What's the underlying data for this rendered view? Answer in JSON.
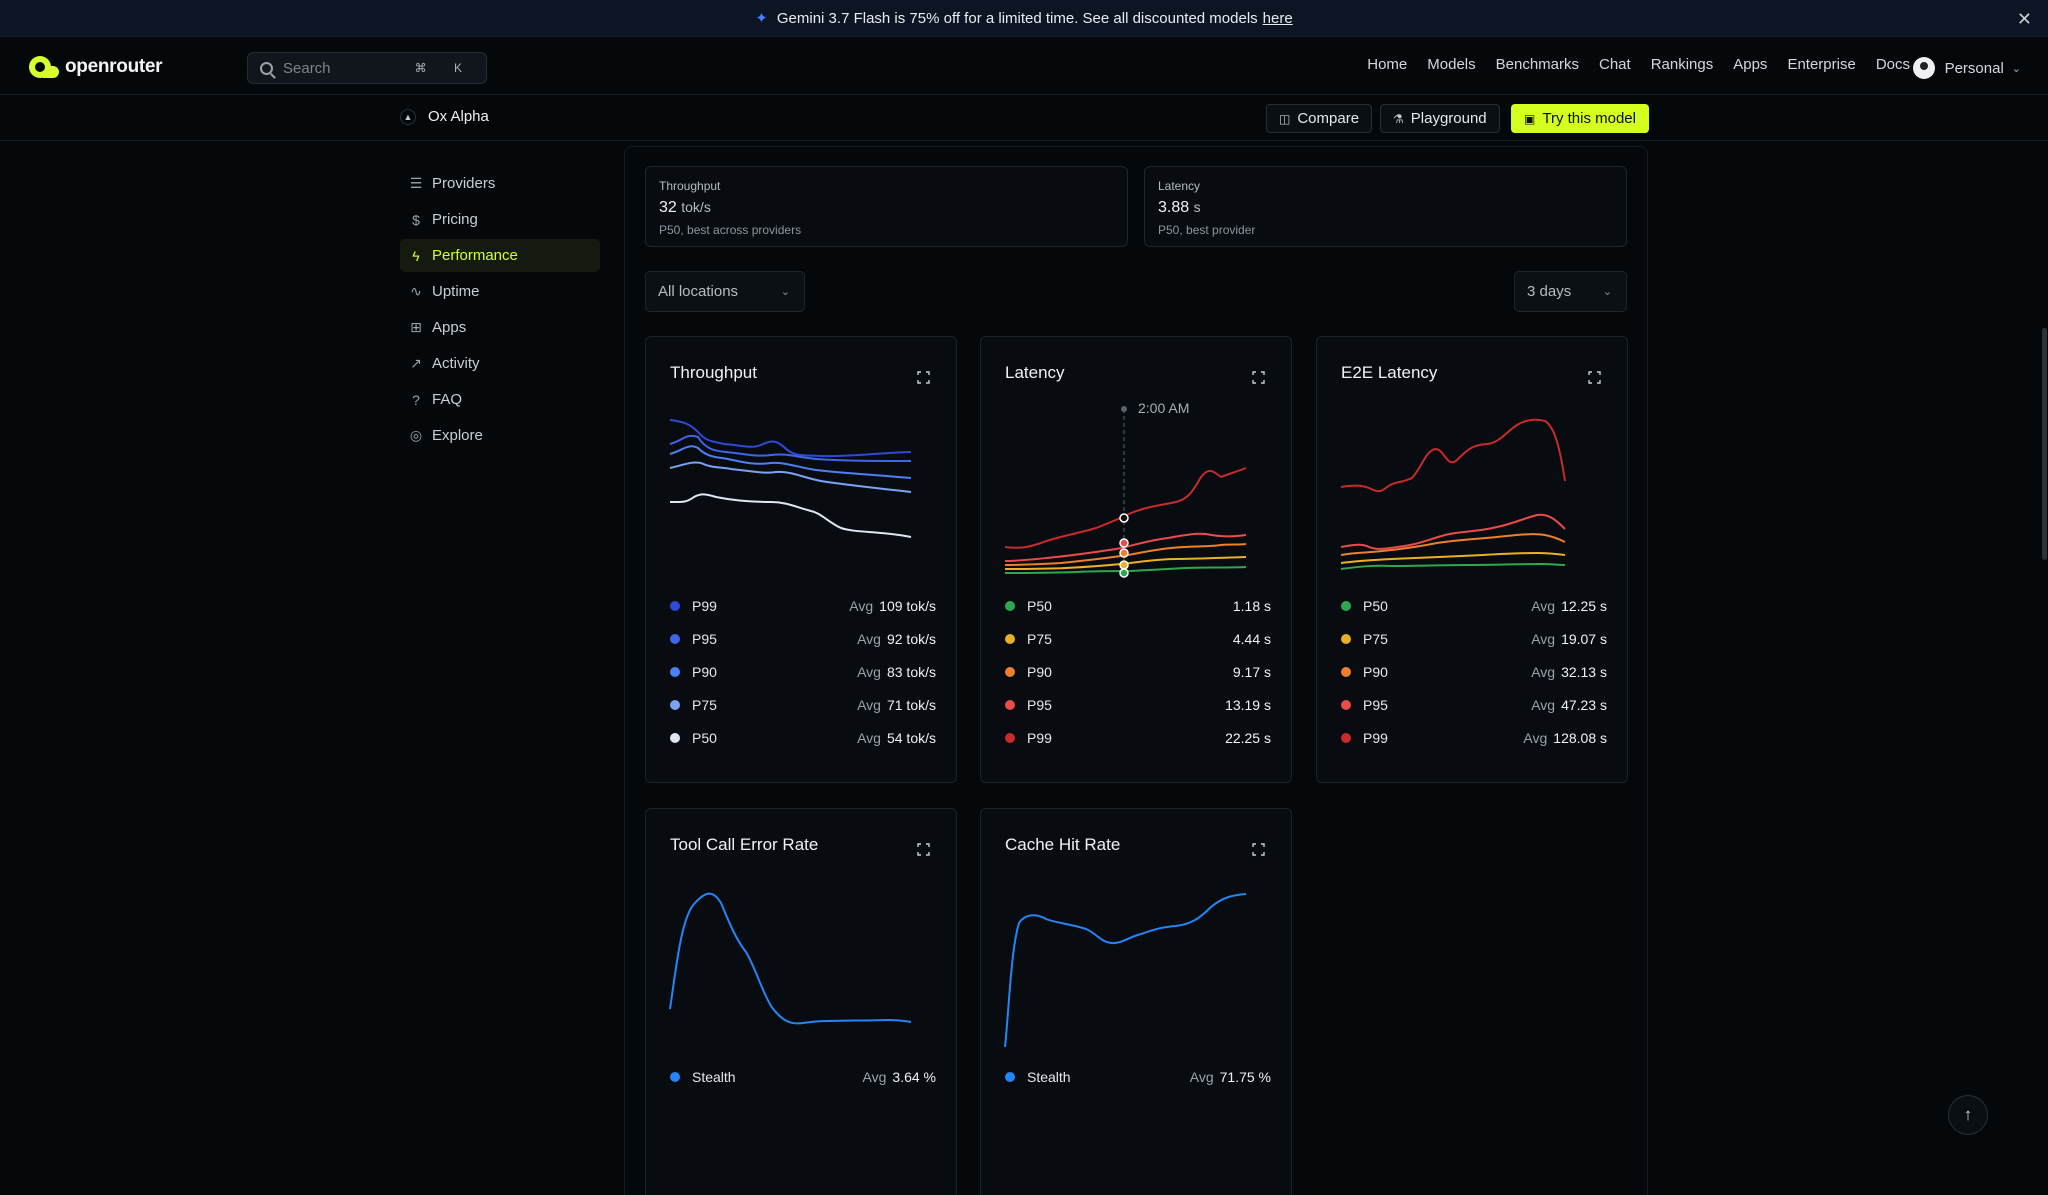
{
  "banner": {
    "text": "Gemini 3.7 Flash is 75% off for a limited time. See all discounted models",
    "link": "here",
    "close_icon": "close-icon"
  },
  "nav": {
    "logo": "openrouter",
    "search_placeholder": "Search",
    "shortcut": "⌘ K",
    "links": [
      "Home",
      "Models",
      "Benchmarks",
      "Chat",
      "Rankings",
      "Apps",
      "Enterprise",
      "Docs"
    ],
    "account": "Personal"
  },
  "model": {
    "name": "Ox Alpha",
    "compare": "Compare",
    "playground": "Playground",
    "try": "Try this model"
  },
  "sidebar": {
    "items": [
      {
        "label": "Providers",
        "icon": "server-icon"
      },
      {
        "label": "Pricing",
        "icon": "dollar-icon"
      },
      {
        "label": "Performance",
        "icon": "bolt-icon",
        "active": true
      },
      {
        "label": "Uptime",
        "icon": "pulse-icon"
      },
      {
        "label": "Apps",
        "icon": "apps-icon"
      },
      {
        "label": "Activity",
        "icon": "trend-icon"
      },
      {
        "label": "FAQ",
        "icon": "help-icon"
      },
      {
        "label": "Explore",
        "icon": "compass-icon"
      }
    ]
  },
  "stats": {
    "throughput": {
      "label": "Throughput",
      "value": "32",
      "unit": "tok/s",
      "sub": "P50, best across providers"
    },
    "latency": {
      "label": "Latency",
      "value": "3.88",
      "unit": "s",
      "sub": "P50, best provider"
    }
  },
  "filters": {
    "location": "All locations",
    "range": "3 days"
  },
  "cards": {
    "throughput": {
      "title": "Throughput",
      "legend": [
        {
          "name": "P99",
          "avg": "Avg",
          "value": "109 tok/s",
          "color": "#2f49d8"
        },
        {
          "name": "P95",
          "avg": "Avg",
          "value": "92 tok/s",
          "color": "#3f66ea"
        },
        {
          "name": "P90",
          "avg": "Avg",
          "value": "83 tok/s",
          "color": "#4d80f2"
        },
        {
          "name": "P75",
          "avg": "Avg",
          "value": "71 tok/s",
          "color": "#7aa3f5"
        },
        {
          "name": "P50",
          "avg": "Avg",
          "value": "54 tok/s",
          "color": "#dfe6f5"
        }
      ]
    },
    "latency": {
      "title": "Latency",
      "tooltip": "2:00 AM",
      "legend": [
        {
          "name": "P50",
          "value": "1.18 s",
          "color": "#2ea84f"
        },
        {
          "name": "P75",
          "value": "4.44 s",
          "color": "#e9b127"
        },
        {
          "name": "P90",
          "value": "9.17 s",
          "color": "#f07f2c"
        },
        {
          "name": "P95",
          "value": "13.19 s",
          "color": "#ea4b4b"
        },
        {
          "name": "P99",
          "value": "22.25 s",
          "color": "#c92a2a"
        }
      ]
    },
    "e2e": {
      "title": "E2E Latency",
      "legend": [
        {
          "name": "P50",
          "avg": "Avg",
          "value": "12.25 s",
          "color": "#2ea84f"
        },
        {
          "name": "P75",
          "avg": "Avg",
          "value": "19.07 s",
          "color": "#e9b127"
        },
        {
          "name": "P90",
          "avg": "Avg",
          "value": "32.13 s",
          "color": "#f07f2c"
        },
        {
          "name": "P95",
          "avg": "Avg",
          "value": "47.23 s",
          "color": "#ea4b4b"
        },
        {
          "name": "P99",
          "avg": "Avg",
          "value": "128.08 s",
          "color": "#c92a2a"
        }
      ]
    },
    "toolcall": {
      "title": "Tool Call Error Rate",
      "legend": [
        {
          "name": "Stealth",
          "avg": "Avg",
          "value": "3.64 %",
          "color": "#2585f5"
        }
      ]
    },
    "cache": {
      "title": "Cache Hit Rate",
      "legend": [
        {
          "name": "Stealth",
          "avg": "Avg",
          "value": "71.75 %",
          "color": "#2585f5"
        }
      ]
    }
  }
}
